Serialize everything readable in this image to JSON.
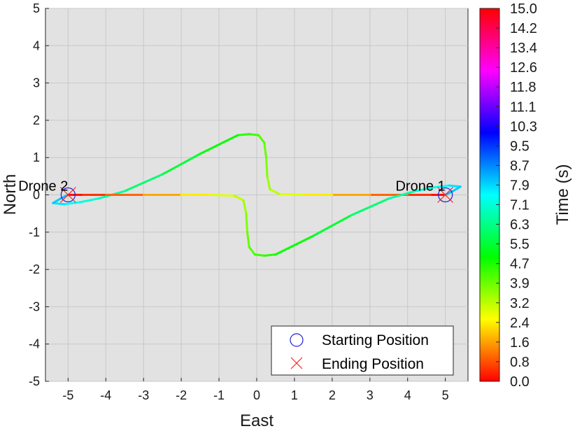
{
  "chart_data": {
    "type": "line",
    "xlabel": "East",
    "ylabel": "North",
    "xlim": [
      -5.6,
      5.6
    ],
    "ylim": [
      -5,
      5
    ],
    "x_ticks": [
      "-5",
      "-4",
      "-3",
      "-2",
      "-1",
      "0",
      "1",
      "2",
      "3",
      "4",
      "5"
    ],
    "y_ticks": [
      "-5",
      "-4",
      "-3",
      "-2",
      "-1",
      "0",
      "1",
      "2",
      "3",
      "4",
      "5"
    ],
    "grid": true,
    "background_color": "#e2e2e2",
    "colorbar": {
      "label": "Time (s)",
      "colormap": "hsv",
      "range": [
        0,
        15
      ],
      "ticks": [
        "15.0",
        "14.2",
        "13.4",
        "12.6",
        "11.8",
        "11.1",
        "10.3",
        "9.5",
        "8.7",
        "7.9",
        "7.1",
        "6.3",
        "5.5",
        "4.7",
        "3.9",
        "3.2",
        "2.4",
        "1.6",
        "0.8",
        "0.0"
      ]
    },
    "series": [
      {
        "name": "Drone 1",
        "color_by": "time",
        "x": [
          5.0,
          4.6,
          4.0,
          3.0,
          2.0,
          1.2,
          0.6,
          0.35,
          0.28,
          0.25,
          0.2,
          0.05,
          -0.2,
          -0.5,
          -1.5,
          -2.5,
          -3.5,
          -4.2,
          -4.7,
          -5.1,
          -5.4,
          -5.2,
          -5.0
        ],
        "y": [
          0.0,
          0.0,
          0.0,
          0.0,
          0.0,
          0.0,
          0.02,
          0.15,
          0.5,
          1.0,
          1.4,
          1.6,
          1.63,
          1.6,
          1.1,
          0.55,
          0.1,
          -0.1,
          -0.2,
          -0.25,
          -0.22,
          -0.1,
          0.0
        ],
        "t": [
          0.0,
          0.3,
          0.7,
          1.3,
          2.0,
          2.6,
          3.0,
          3.3,
          3.6,
          3.9,
          4.1,
          4.3,
          4.5,
          4.7,
          5.2,
          5.8,
          6.4,
          6.9,
          7.3,
          7.6,
          7.9,
          8.1,
          8.2
        ]
      },
      {
        "name": "Drone 2",
        "color_by": "time",
        "x": [
          -5.0,
          -4.6,
          -4.0,
          -3.0,
          -2.0,
          -1.2,
          -0.6,
          -0.35,
          -0.28,
          -0.25,
          -0.2,
          -0.05,
          0.2,
          0.5,
          1.5,
          2.5,
          3.5,
          4.2,
          4.7,
          5.1,
          5.4,
          5.2,
          5.0
        ],
        "y": [
          0.0,
          0.0,
          0.0,
          0.0,
          0.0,
          0.0,
          -0.02,
          -0.15,
          -0.5,
          -1.0,
          -1.4,
          -1.6,
          -1.63,
          -1.6,
          -1.1,
          -0.55,
          -0.1,
          0.1,
          0.2,
          0.25,
          0.22,
          0.1,
          0.0
        ],
        "t": [
          0.0,
          0.3,
          0.7,
          1.3,
          2.0,
          2.6,
          3.0,
          3.3,
          3.6,
          3.9,
          4.1,
          4.3,
          4.5,
          4.7,
          5.2,
          5.8,
          6.4,
          6.9,
          7.3,
          7.6,
          7.9,
          8.1,
          8.2
        ]
      }
    ],
    "start_markers": {
      "x": [
        5,
        -5
      ],
      "y": [
        0,
        0
      ],
      "color": "#1f1fd6"
    },
    "end_markers": {
      "x": [
        5,
        -5
      ],
      "y": [
        0,
        0
      ],
      "color": "#ff2020"
    },
    "annotations": [
      {
        "text": "Drone 1",
        "x": 5,
        "y": 0
      },
      {
        "text": "Drone 2",
        "x": -5,
        "y": 0
      }
    ],
    "legend": {
      "placement": "bottom-right",
      "entries": [
        {
          "label": "Starting Position",
          "marker": "circle",
          "color": "#1f1fd6"
        },
        {
          "label": "Ending Position",
          "marker": "x",
          "color": "#ff2020"
        }
      ]
    }
  }
}
